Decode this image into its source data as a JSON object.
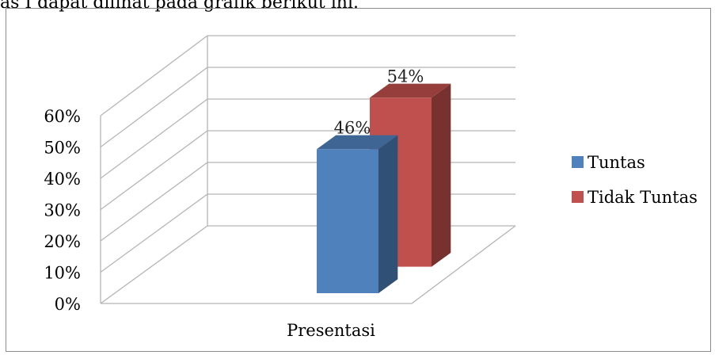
{
  "page_text": "as I dapat dilihat pada grafik berikut ini.",
  "chart_data": {
    "type": "bar",
    "categories": [
      "Presentasi"
    ],
    "series": [
      {
        "name": "Tuntas",
        "values": [
          0.46
        ],
        "label": "46%",
        "color": "#4f81bd"
      },
      {
        "name": "Tidak Tuntas",
        "values": [
          0.54
        ],
        "label": "54%",
        "color": "#c0504d"
      }
    ],
    "ylim": [
      0,
      0.6
    ],
    "yticks": [
      "0%",
      "10%",
      "20%",
      "30%",
      "40%",
      "50%",
      "60%"
    ],
    "grid": true,
    "legend": "right",
    "style": "3d"
  }
}
